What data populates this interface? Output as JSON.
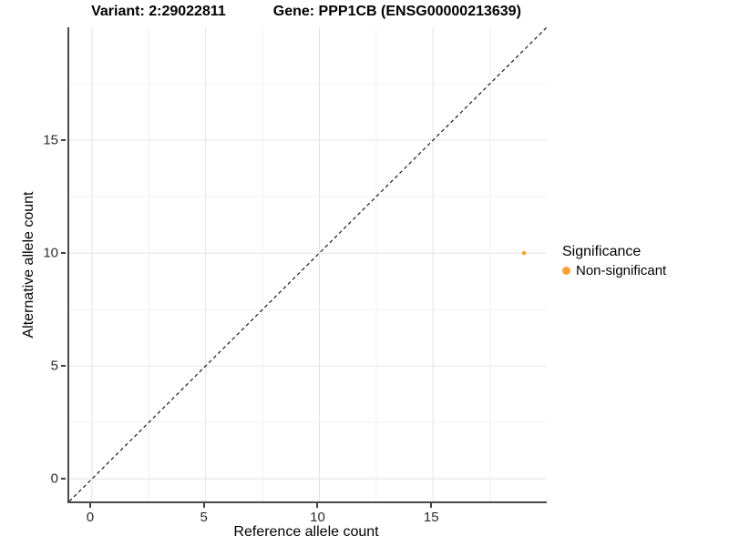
{
  "title": {
    "variant": "Variant: 2:29022811",
    "gene": "Gene: PPP1CB (ENSG00000213639)"
  },
  "chart_data": {
    "type": "scatter",
    "titles": {
      "variant": "Variant: 2:29022811",
      "gene": "Gene: PPP1CB (ENSG00000213639)"
    },
    "xlabel": "Reference allele count",
    "ylabel": "Alternative allele count",
    "xlim": [
      -1,
      20
    ],
    "ylim": [
      -1,
      20
    ],
    "x_major_ticks": [
      0,
      5,
      10,
      15
    ],
    "y_major_ticks": [
      0,
      5,
      10,
      15
    ],
    "x_minor_ticks": [
      2.5,
      7.5,
      12.5,
      17.5
    ],
    "y_minor_ticks": [
      2.5,
      7.5,
      12.5,
      17.5
    ],
    "grid": true,
    "points": [
      {
        "x": 19,
        "y": 10,
        "significance": "Non-significant"
      }
    ],
    "identity_line": {
      "style": "dashed",
      "equation": "y = x",
      "from": [
        -1,
        -1
      ],
      "to": [
        20,
        20
      ]
    },
    "legend": {
      "position": "right",
      "title": "Significance",
      "items": [
        {
          "label": "Non-significant",
          "color": "#F9A03C"
        }
      ]
    }
  },
  "colors": {
    "point": "#F9A03C",
    "axis_line": "#4a4a4a",
    "tick_mark": "#404040",
    "grid_major": "#e4e4e4",
    "grid_minor": "#f0f0f0",
    "identity_line": "#1a1a1a",
    "background": "#ffffff"
  }
}
